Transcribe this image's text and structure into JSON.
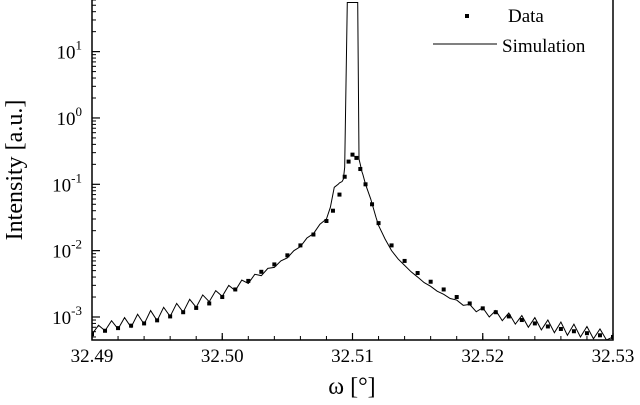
{
  "chart_data": {
    "type": "line",
    "xlabel": "ω [°]",
    "ylabel": "Intensity [a.u.]",
    "xlim": [
      32.49,
      32.53
    ],
    "ylim": [
      0.00045,
      60
    ],
    "yscale": "log",
    "grid": false,
    "legend_position": "top-right",
    "x_ticks": [
      {
        "value": 32.49,
        "label": "32.49"
      },
      {
        "value": 32.5,
        "label": "32.50"
      },
      {
        "value": 32.51,
        "label": "32.51"
      },
      {
        "value": 32.52,
        "label": "32.52"
      },
      {
        "value": 32.53,
        "label": "32.53"
      }
    ],
    "y_ticks": [
      {
        "value": 0.001,
        "base": "10",
        "exp": "-3"
      },
      {
        "value": 0.01,
        "base": "10",
        "exp": "-2"
      },
      {
        "value": 0.1,
        "base": "10",
        "exp": "-1"
      },
      {
        "value": 1,
        "base": "10",
        "exp": "0"
      },
      {
        "value": 10,
        "base": "10",
        "exp": "1"
      }
    ],
    "series": [
      {
        "name": "Data",
        "style": "dots",
        "x": [
          32.49,
          32.491,
          32.492,
          32.493,
          32.494,
          32.495,
          32.496,
          32.497,
          32.498,
          32.499,
          32.5,
          32.501,
          32.502,
          32.503,
          32.504,
          32.505,
          32.506,
          32.507,
          32.508,
          32.5085,
          32.509,
          32.5094,
          32.5097,
          32.51,
          32.5103,
          32.5106,
          32.511,
          32.5115,
          32.512,
          32.513,
          32.514,
          32.515,
          32.516,
          32.517,
          32.518,
          32.519,
          32.52,
          32.521,
          32.522,
          32.523,
          32.524,
          32.525,
          32.526,
          32.527,
          32.528,
          32.529,
          32.53
        ],
        "y": [
          0.00055,
          0.00062,
          0.00068,
          0.00074,
          0.0008,
          0.00089,
          0.00102,
          0.00118,
          0.00137,
          0.0016,
          0.002,
          0.0026,
          0.0035,
          0.0048,
          0.0062,
          0.0085,
          0.012,
          0.0175,
          0.028,
          0.04,
          0.07,
          0.13,
          0.22,
          0.28,
          0.25,
          0.17,
          0.1,
          0.05,
          0.026,
          0.012,
          0.007,
          0.0046,
          0.0034,
          0.0026,
          0.002,
          0.0016,
          0.00135,
          0.00118,
          0.00102,
          0.0009,
          0.0008,
          0.00072,
          0.00066,
          0.00061,
          0.00057,
          0.00053,
          0.0005
        ]
      },
      {
        "name": "Simulation",
        "style": "line",
        "x": [
          32.49,
          32.4905,
          32.491,
          32.4915,
          32.492,
          32.4925,
          32.493,
          32.4935,
          32.494,
          32.4945,
          32.495,
          32.4955,
          32.496,
          32.4965,
          32.497,
          32.4975,
          32.498,
          32.4985,
          32.499,
          32.4995,
          32.5,
          32.5005,
          32.501,
          32.5015,
          32.502,
          32.5025,
          32.503,
          32.5035,
          32.504,
          32.5045,
          32.505,
          32.5055,
          32.506,
          32.5065,
          32.507,
          32.5075,
          32.508,
          32.5083,
          32.5086,
          32.5089,
          32.509,
          32.5092,
          32.5093,
          32.5094,
          32.5096,
          32.5097,
          32.51,
          32.5103,
          32.5104,
          32.5105,
          32.5106,
          32.5107,
          32.5108,
          32.511,
          32.5114,
          32.5118,
          32.512,
          32.5125,
          32.513,
          32.5135,
          32.514,
          32.5145,
          32.515,
          32.5155,
          32.516,
          32.5165,
          32.517,
          32.5175,
          32.518,
          32.5185,
          32.519,
          32.5195,
          32.52,
          32.5205,
          32.521,
          32.5215,
          32.522,
          32.5225,
          32.523,
          32.5235,
          32.524,
          32.5245,
          32.525,
          32.5255,
          32.526,
          32.5265,
          32.527,
          32.5275,
          32.528,
          32.5285,
          32.529,
          32.5295,
          32.53
        ],
        "y": [
          0.00055,
          0.00075,
          0.00062,
          0.00088,
          0.00066,
          0.00098,
          0.0007,
          0.0011,
          0.00078,
          0.00125,
          0.00088,
          0.0014,
          0.00102,
          0.0016,
          0.00118,
          0.00185,
          0.0014,
          0.00215,
          0.0017,
          0.0025,
          0.00205,
          0.003,
          0.0025,
          0.0036,
          0.0032,
          0.0044,
          0.0042,
          0.0054,
          0.0056,
          0.007,
          0.0078,
          0.01,
          0.0115,
          0.0155,
          0.018,
          0.025,
          0.03,
          0.045,
          0.09,
          0.1,
          0.105,
          0.11,
          0.12,
          0.18,
          55,
          55,
          55,
          55,
          55,
          0.24,
          0.2,
          0.16,
          0.14,
          0.1,
          0.06,
          0.032,
          0.024,
          0.015,
          0.01,
          0.0075,
          0.006,
          0.0048,
          0.004,
          0.0033,
          0.0029,
          0.00245,
          0.0022,
          0.0019,
          0.0018,
          0.0015,
          0.00155,
          0.0012,
          0.00138,
          0.001,
          0.00125,
          0.00088,
          0.00115,
          0.00078,
          0.00105,
          0.0007,
          0.00098,
          0.00064,
          0.0009,
          0.00058,
          0.00084,
          0.00053,
          0.00078,
          0.0005,
          0.00072,
          0.00047,
          0.00066,
          0.00045,
          0.0005
        ]
      }
    ]
  }
}
